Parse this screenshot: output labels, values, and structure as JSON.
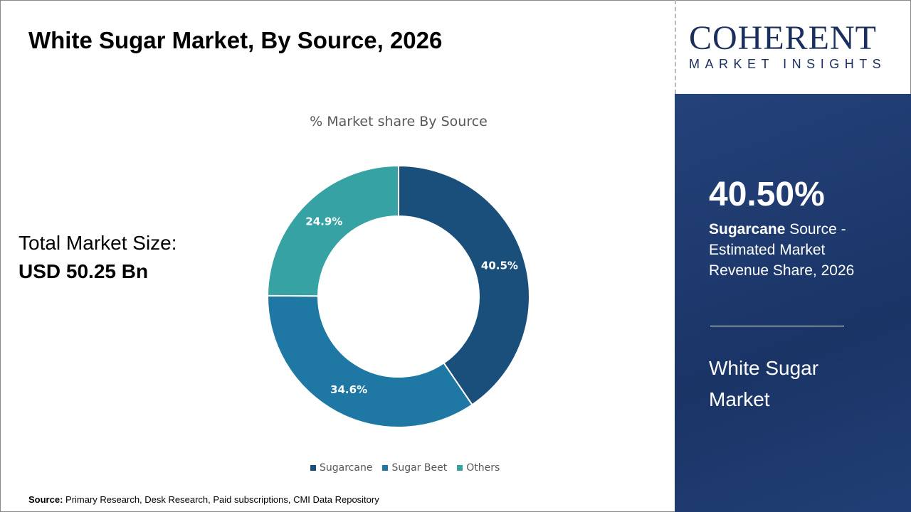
{
  "title": "White Sugar Market, By Source, 2026",
  "total": {
    "label": "Total Market Size:",
    "value": "USD 50.25 Bn"
  },
  "source": {
    "label": "Source:",
    "text": " Primary Research, Desk Research, Paid subscriptions, CMI Data Repository"
  },
  "logo": {
    "line1": "COHERENT",
    "line2": "MARKET INSIGHTS"
  },
  "panel": {
    "percent": "40.50%",
    "bold": "Sugarcane",
    "desc": " Source - Estimated Market Revenue Share, 2026",
    "market": "White Sugar Market"
  },
  "chart_data": {
    "type": "pie",
    "subtitle": "% Market share By Source",
    "donut": true,
    "categories": [
      "Sugarcane",
      "Sugar Beet",
      "Others"
    ],
    "values": [
      40.5,
      34.6,
      24.9
    ],
    "labels": [
      "40.5%",
      "34.6%",
      "24.9%"
    ],
    "colors": [
      "#1b4f7b",
      "#1f77a3",
      "#36a2a4"
    ],
    "legend_position": "bottom"
  }
}
